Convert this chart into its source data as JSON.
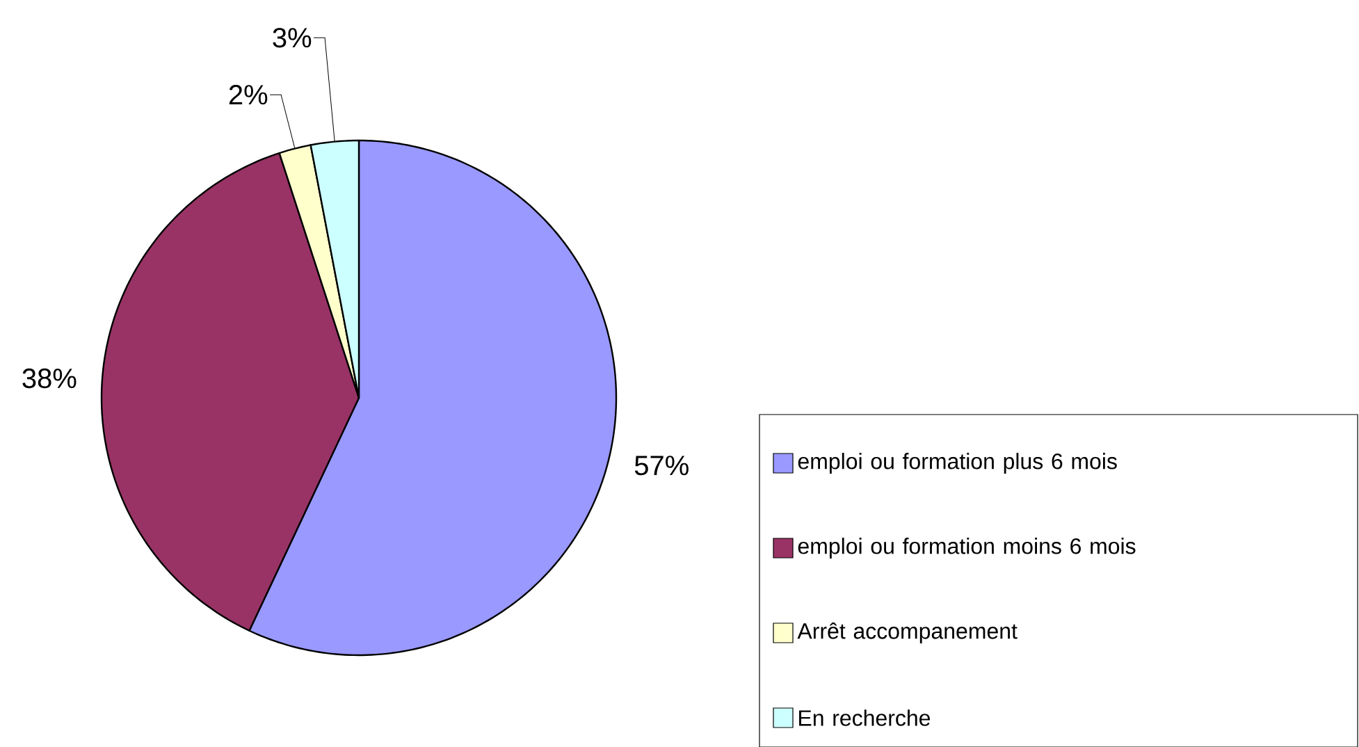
{
  "chart_data": {
    "type": "pie",
    "categories": [
      "emploi ou formation plus 6 mois",
      "emploi ou formation moins 6 mois",
      "Arrêt accompanement",
      "En recherche"
    ],
    "values": [
      57,
      38,
      2,
      3
    ],
    "colors": [
      "#9999ff",
      "#993366",
      "#ffffcc",
      "#ccffff"
    ],
    "value_labels": [
      "57%",
      "38%",
      "2%",
      "3%"
    ],
    "legend": "bottom right"
  }
}
